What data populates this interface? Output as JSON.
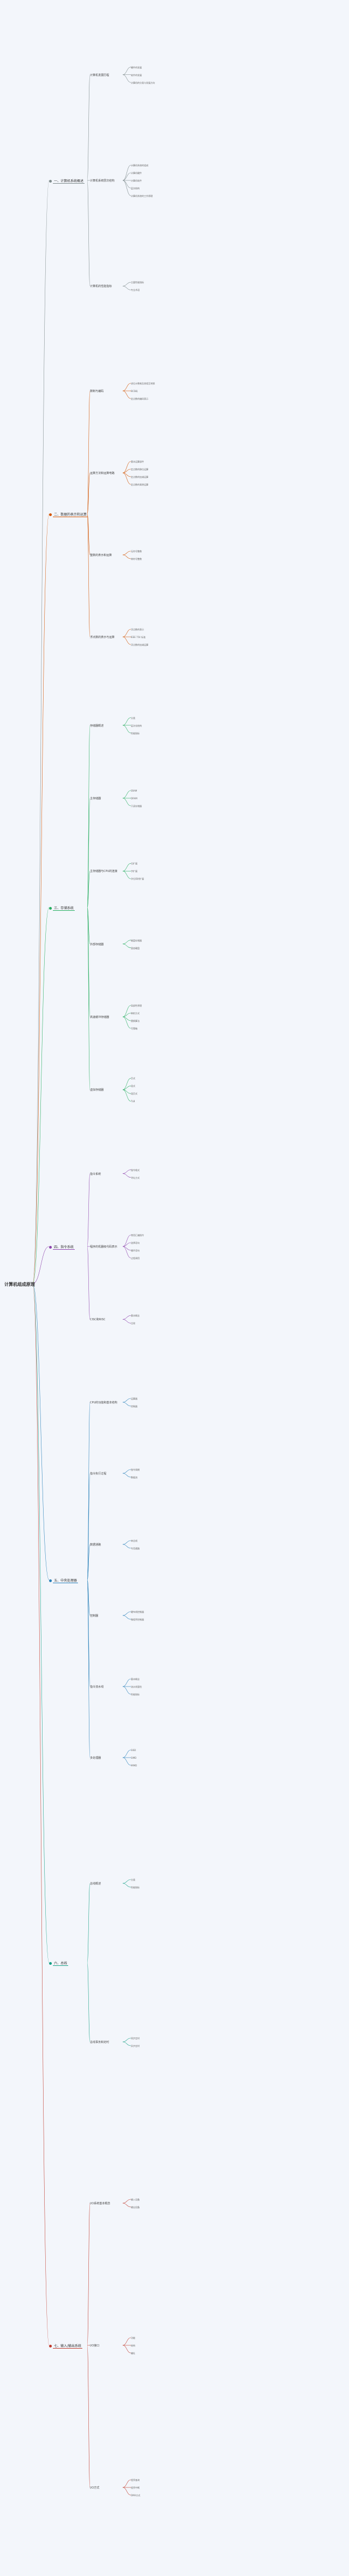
{
  "root": {
    "title": "计算机组成原理"
  },
  "branches": [
    {
      "label": "一、计算机系统概述",
      "color": "#7f8c8d",
      "children": [
        {
          "label": "计算机发展历程",
          "items": [
            "硬件的发展",
            "软件的发展",
            "计算机的分类与发展方向"
          ]
        },
        {
          "label": "计算机系统层次结构",
          "items": [
            "计算机系统的组成",
            "计算机硬件",
            "计算机软件",
            "层次结构",
            "计算机系统的工作原理"
          ]
        },
        {
          "label": "计算机的性能指标",
          "items": [
            "主要性能指标",
            "专业术语"
          ]
        }
      ]
    },
    {
      "label": "二、数据的表示和运算",
      "color": "#d35400",
      "children": [
        {
          "label": "数制与编码",
          "items": [
            "进位计数制及其相互转换",
            "BCD码",
            "定点数的编码表示"
          ]
        },
        {
          "label": "运算方法和运算电路",
          "items": [
            "基本运算部件",
            "定点数的移位运算",
            "定点数的加减运算",
            "定点数的乘除运算"
          ]
        },
        {
          "label": "整数的表示和运算",
          "items": [
            "无符号整数",
            "带符号整数"
          ]
        },
        {
          "label": "浮点数的表示与运算",
          "items": [
            "浮点数的表示",
            "IEEE 754 标准",
            "浮点数的加减运算"
          ]
        }
      ]
    },
    {
      "label": "三、存储系统",
      "color": "#27ae60",
      "children": [
        {
          "label": "存储器概述",
          "items": [
            "分类",
            "层次化结构",
            "性能指标"
          ]
        },
        {
          "label": "主存储器",
          "items": [
            "SRAM",
            "DRAM",
            "只读存储器"
          ]
        },
        {
          "label": "主存储器与CPU的连接",
          "items": [
            "位扩展",
            "字扩展",
            "字位同时扩展"
          ]
        },
        {
          "label": "外部存储器",
          "items": [
            "磁盘存储器",
            "固态硬盘"
          ]
        },
        {
          "label": "高速缓冲存储器",
          "items": [
            "局部性原理",
            "映射方式",
            "替换算法",
            "写策略"
          ]
        },
        {
          "label": "虚拟存储器",
          "items": [
            "页式",
            "段式",
            "段页式",
            "TLB"
          ]
        }
      ]
    },
    {
      "label": "四、指令系统",
      "color": "#8e44ad",
      "children": [
        {
          "label": "指令系统",
          "items": [
            "指令格式",
            "寻址方式"
          ]
        },
        {
          "label": "程序的机器级代码表示",
          "items": [
            "常用汇编指令",
            "选择语句",
            "循环语句",
            "过程调用"
          ]
        },
        {
          "label": "CISC和RISC",
          "items": [
            "基本概念",
            "比较"
          ]
        }
      ]
    },
    {
      "label": "五、中央处理器",
      "color": "#2980b9",
      "children": [
        {
          "label": "CPU的功能和基本结构",
          "items": [
            "运算器",
            "控制器"
          ]
        },
        {
          "label": "指令执行过程",
          "items": [
            "指令周期",
            "数据流"
          ]
        },
        {
          "label": "数据通路",
          "items": [
            "单总线",
            "专用通路"
          ]
        },
        {
          "label": "控制器",
          "items": [
            "硬布线控制器",
            "微程序控制器"
          ]
        },
        {
          "label": "指令流水线",
          "items": [
            "基本概念",
            "流水线冒险",
            "性能指标"
          ]
        },
        {
          "label": "多处理器",
          "items": [
            "SISD",
            "SIMD",
            "MIMD"
          ]
        }
      ]
    },
    {
      "label": "六、总线",
      "color": "#16a085",
      "children": [
        {
          "label": "总线概述",
          "items": [
            "分类",
            "性能指标"
          ]
        },
        {
          "label": "总线事务和定时",
          "items": [
            "同步定时",
            "异步定时"
          ]
        }
      ]
    },
    {
      "label": "七、输入/输出系统",
      "color": "#c0392b",
      "children": [
        {
          "label": "I/O系统基本概念",
          "items": [
            "输入设备",
            "输出设备"
          ]
        },
        {
          "label": "I/O接口",
          "items": [
            "功能",
            "结构",
            "编址"
          ]
        },
        {
          "label": "I/O方式",
          "items": [
            "程序查询",
            "程序中断",
            "DMA方式"
          ]
        }
      ]
    }
  ]
}
